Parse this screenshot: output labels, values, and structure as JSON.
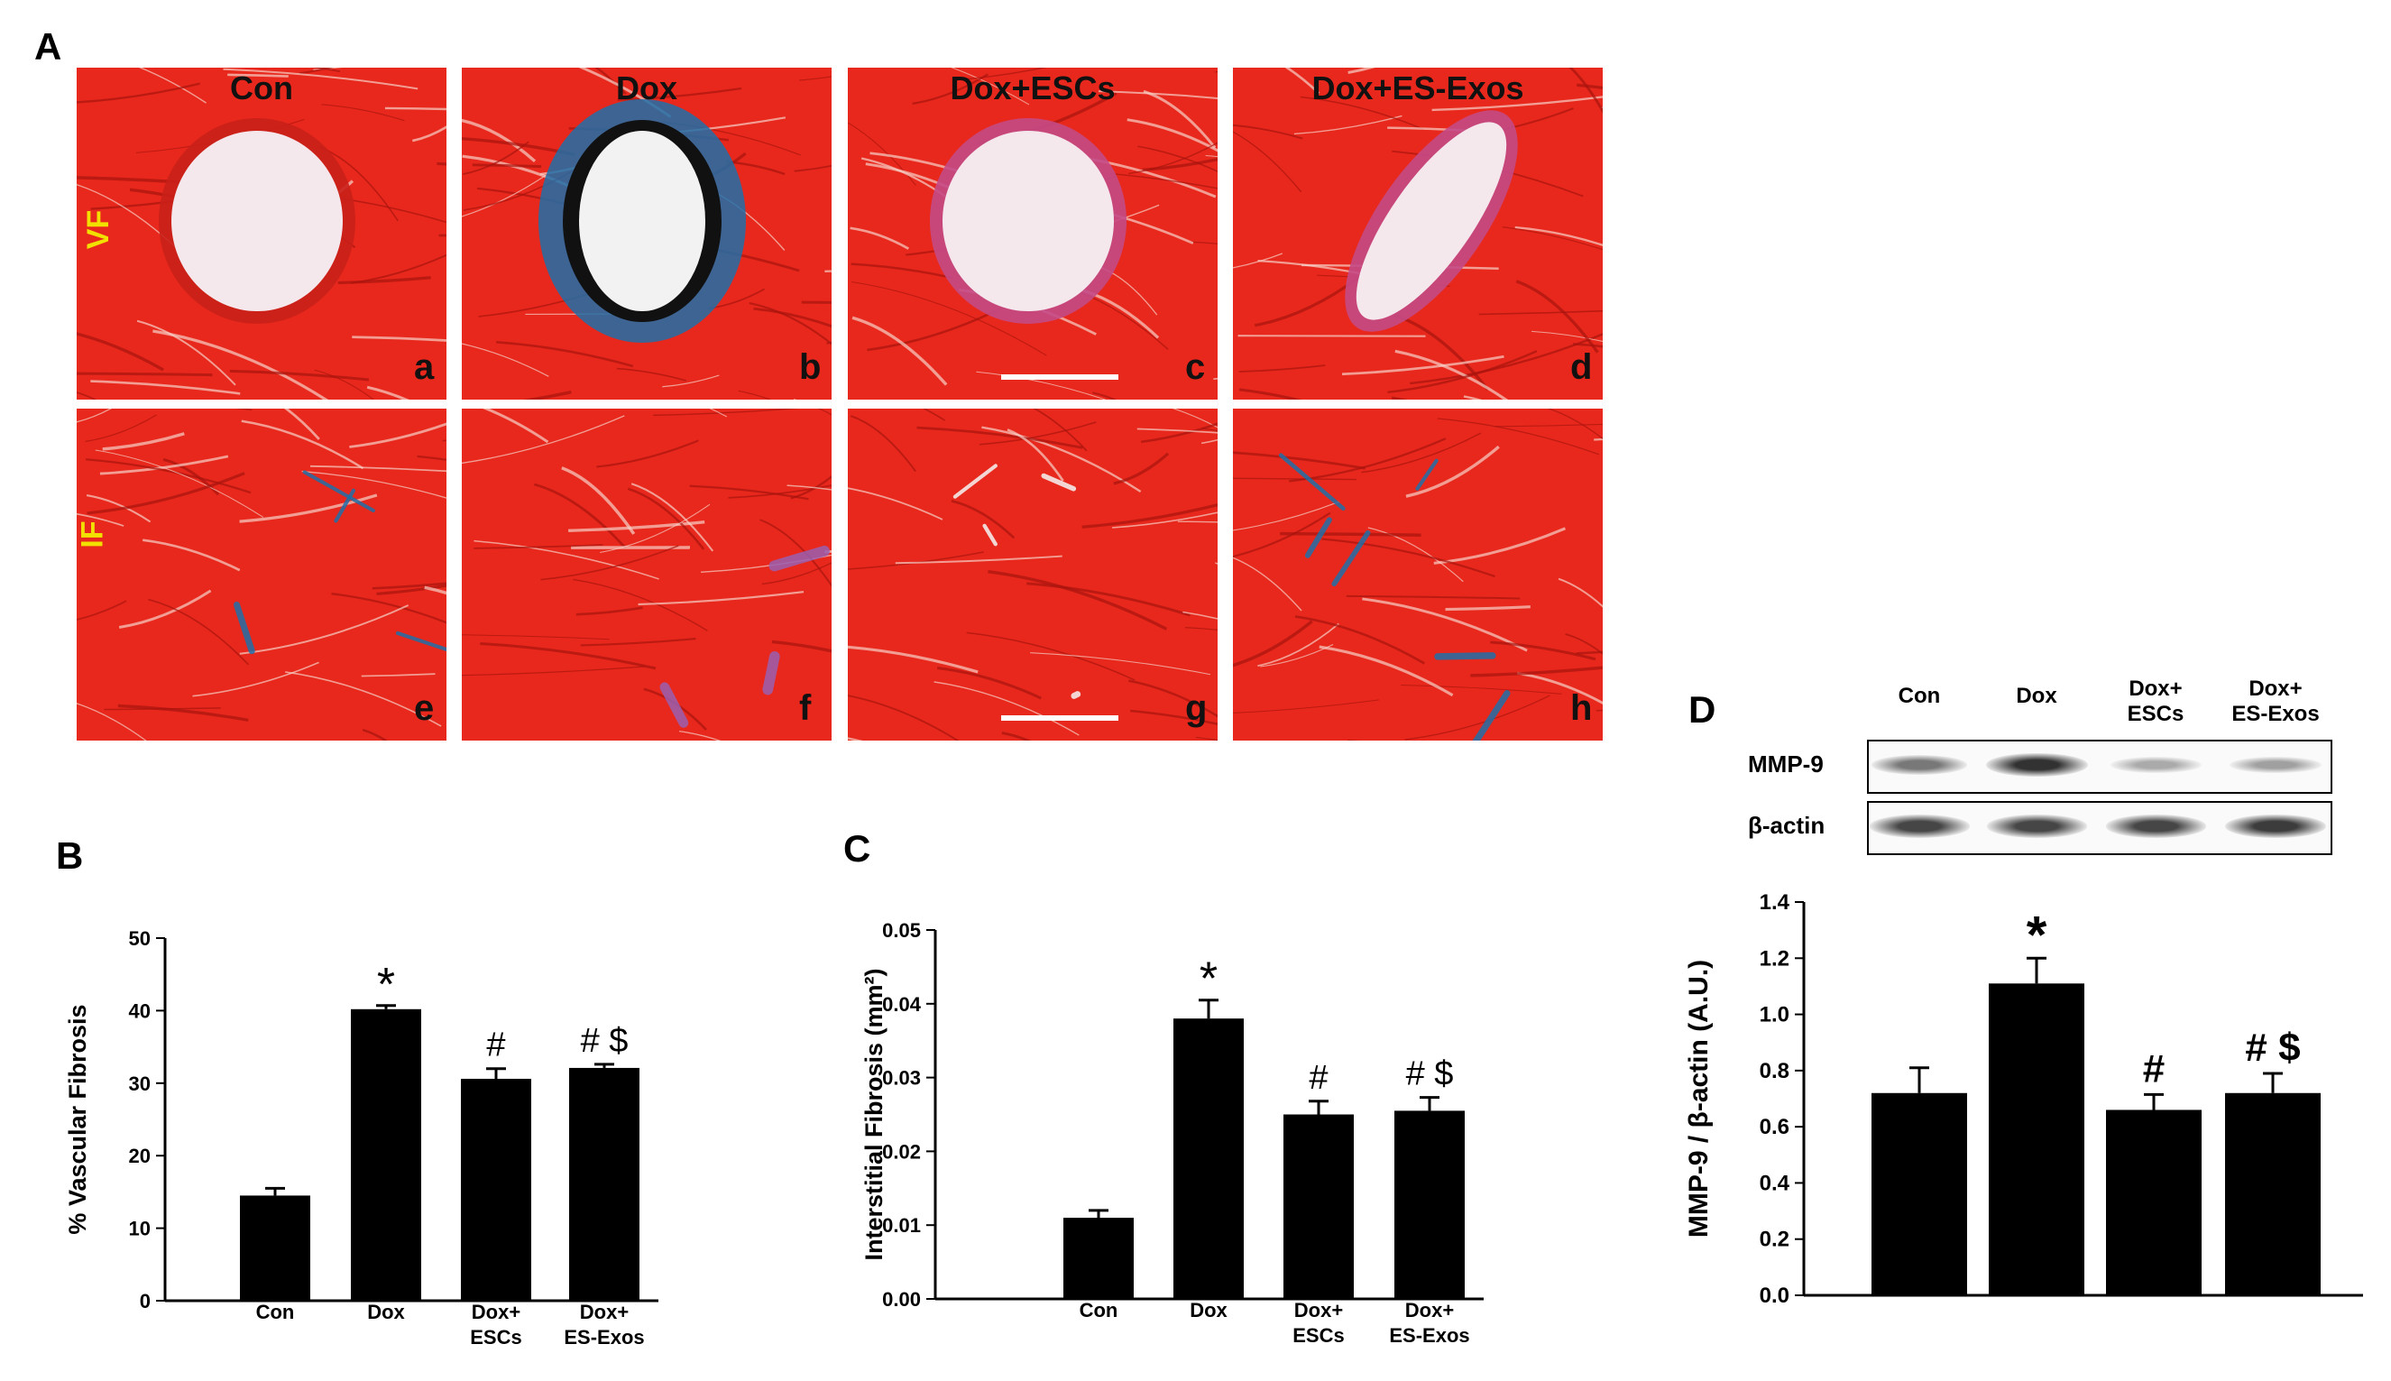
{
  "figure": {
    "panel_labels": {
      "A": "A",
      "B": "B",
      "C": "C",
      "D": "D"
    },
    "micrographs": {
      "groups": [
        "Con",
        "Dox",
        "Dox+ESCs",
        "Dox+ES-Exos"
      ],
      "row_tags": [
        "VF",
        "IF"
      ],
      "sub_letters": [
        "a",
        "b",
        "c",
        "d",
        "e",
        "f",
        "g",
        "h"
      ],
      "colors": {
        "muscle": "#e8281c",
        "fibrosis": "#1e6fa8",
        "lumen": "#f4e8ec"
      }
    },
    "western_blot": {
      "lanes": [
        "Con",
        "Dox",
        "Dox+\nESCs",
        "Dox+\nES-Exos"
      ],
      "rows": [
        "MMP-9",
        "β-actin"
      ],
      "mmp9_band_intensity": [
        0.55,
        0.9,
        0.3,
        0.35
      ],
      "actin_band_intensity": [
        0.8,
        0.8,
        0.8,
        0.85
      ]
    }
  },
  "chart_data": [
    {
      "id": "B",
      "type": "bar",
      "categories": [
        "Con",
        "Dox",
        "Dox+\nESCs",
        "Dox+\nES-Exos"
      ],
      "values": [
        14.5,
        40.2,
        30.6,
        32.1
      ],
      "errors": [
        1.0,
        0.5,
        1.4,
        0.5
      ],
      "annotations": [
        "",
        "*",
        "#",
        "# $"
      ],
      "ylabel": "% Vascular Fibrosis",
      "ylim": [
        0,
        50
      ],
      "yticks": [
        0,
        10,
        20,
        30,
        40,
        50
      ],
      "ytick_labels": [
        "0",
        "10",
        "20",
        "30",
        "40",
        "50"
      ],
      "bar_color": "#000000"
    },
    {
      "id": "C",
      "type": "bar",
      "categories": [
        "Con",
        "Dox",
        "Dox+\nESCs",
        "Dox+\nES-Exos"
      ],
      "values": [
        0.011,
        0.038,
        0.025,
        0.0255
      ],
      "errors": [
        0.001,
        0.0025,
        0.0018,
        0.0018
      ],
      "annotations": [
        "",
        "*",
        "#",
        "# $"
      ],
      "ylabel": "Interstitial Fibrosis (mm²)",
      "ylim": [
        0,
        0.05
      ],
      "yticks": [
        0,
        0.01,
        0.02,
        0.03,
        0.04,
        0.05
      ],
      "ytick_labels": [
        "0.00",
        "0.01",
        "0.02",
        "0.03",
        "0.04",
        "0.05"
      ],
      "bar_color": "#000000"
    },
    {
      "id": "D",
      "type": "bar",
      "categories": [
        "Con",
        "Dox",
        "Dox+\nESCs",
        "Dox+\nES-Exos"
      ],
      "values": [
        0.72,
        1.11,
        0.66,
        0.72
      ],
      "errors": [
        0.09,
        0.09,
        0.055,
        0.07
      ],
      "annotations": [
        "",
        "*",
        "#",
        "# $"
      ],
      "ylabel": "MMP-9 / β-actin (A.U.)",
      "ylim": [
        0,
        1.4
      ],
      "yticks": [
        0,
        0.2,
        0.4,
        0.6,
        0.8,
        1.0,
        1.2,
        1.4
      ],
      "ytick_labels": [
        "0.0",
        "0.2",
        "0.4",
        "0.6",
        "0.8",
        "1.0",
        "1.2",
        "1.4"
      ],
      "bar_color": "#000000"
    }
  ]
}
